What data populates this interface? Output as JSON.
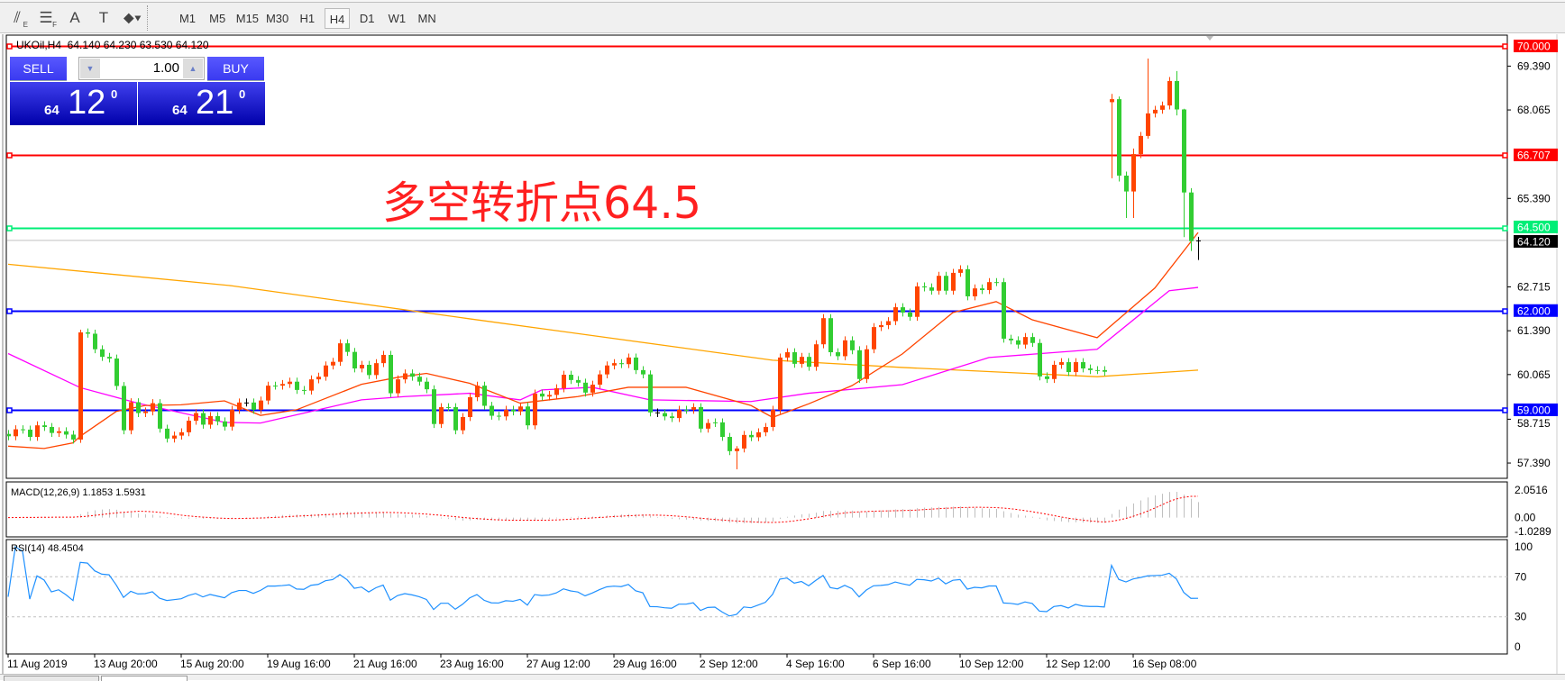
{
  "toolbar": {
    "tools": [
      {
        "icon": "fibonacci-fan-icon",
        "glyph": "⫽",
        "sub": "E"
      },
      {
        "icon": "fibonacci-grid-icon",
        "glyph": "☰",
        "sub": "F"
      },
      {
        "icon": "text-icon",
        "glyph": "A",
        "sub": ""
      },
      {
        "icon": "text-label-icon",
        "glyph": "T",
        "sub": ""
      },
      {
        "icon": "arrows-dropdown-icon",
        "glyph": "⬥▾",
        "sub": ""
      }
    ],
    "timeframes": [
      "M1",
      "M5",
      "M15",
      "M30",
      "H1",
      "H4",
      "D1",
      "W1",
      "MN"
    ],
    "active_timeframe": "H4"
  },
  "chart": {
    "title": "UKOil,H4  64.140 64.230 63.530 64.120",
    "annotation": "多空转折点64.5",
    "annotation_color": "#ff2020"
  },
  "trade_panel": {
    "sell_label": "SELL",
    "buy_label": "BUY",
    "volume": "1.00",
    "sell_price": {
      "small": "64",
      "big": "12",
      "sup": "0"
    },
    "buy_price": {
      "small": "64",
      "big": "21",
      "sup": "0"
    }
  },
  "chart_data": {
    "type": "candlestick",
    "symbol": "UKOil",
    "timeframe": "H4",
    "colors": {
      "up": "#ff4500",
      "down": "#32cd32",
      "ma_long": "#ffa500",
      "ma_mid": "#ff00ff",
      "ma_short": "#ff4500"
    },
    "ylim": [
      56.75,
      70.3
    ],
    "price_ticks": [
      "69.390",
      "68.065",
      "65.390",
      "62.715",
      "61.390",
      "60.065",
      "58.715",
      "57.390"
    ],
    "levels": [
      {
        "value": "70.000",
        "color": "#ff0000"
      },
      {
        "value": "66.707",
        "color": "#ff0000"
      },
      {
        "value": "64.500",
        "color": "#00ee77"
      },
      {
        "value": "62.000",
        "color": "#0000ff"
      },
      {
        "value": "59.000",
        "color": "#0000ff"
      }
    ],
    "current_price": "64.120",
    "first_open": 58.27,
    "open_overrides": {
      "153": 68.3
    },
    "closes": [
      58.2,
      58.41,
      58.4,
      58.18,
      58.53,
      58.48,
      58.3,
      58.35,
      58.25,
      58.1,
      61.34,
      61.3,
      60.83,
      60.6,
      60.55,
      59.72,
      58.38,
      59.23,
      58.9,
      58.95,
      59.2,
      58.43,
      58.13,
      58.22,
      58.32,
      58.67,
      58.9,
      58.55,
      58.81,
      58.65,
      58.49,
      59.0,
      59.22,
      59.22,
      59.0,
      59.28,
      59.73,
      59.73,
      59.78,
      59.85,
      59.6,
      59.58,
      59.92,
      60.0,
      60.34,
      60.45,
      61.01,
      60.75,
      60.25,
      60.36,
      60.05,
      60.41,
      60.66,
      59.5,
      59.92,
      60.1,
      60.0,
      59.85,
      59.62,
      58.57,
      59.08,
      59.08,
      58.38,
      58.78,
      59.38,
      59.73,
      59.12,
      58.82,
      58.8,
      59.0,
      58.95,
      59.1,
      58.53,
      59.49,
      59.4,
      59.45,
      59.65,
      60.06,
      59.9,
      59.82,
      59.52,
      59.76,
      60.07,
      60.34,
      60.41,
      60.38,
      60.58,
      60.2,
      60.07,
      58.92,
      58.9,
      58.8,
      58.75,
      59.0,
      59.0,
      59.08,
      58.43,
      58.6,
      58.62,
      58.18,
      57.75,
      57.83,
      58.24,
      58.17,
      58.32,
      58.48,
      59.0,
      60.58,
      60.74,
      60.39,
      60.6,
      60.3,
      60.98,
      61.77,
      60.74,
      60.62,
      61.1,
      60.8,
      59.93,
      60.83,
      61.5,
      61.56,
      61.68,
      62.1,
      61.94,
      61.81,
      62.73,
      62.7,
      62.6,
      63.05,
      62.6,
      63.14,
      63.25,
      62.43,
      62.67,
      62.62,
      62.86,
      62.86,
      61.15,
      61.1,
      60.97,
      61.2,
      61.02,
      60.01,
      59.93,
      60.36,
      60.44,
      60.14,
      60.44,
      60.25,
      60.2,
      60.2,
      60.15,
      68.39,
      66.08,
      65.6,
      66.73,
      67.28,
      67.96,
      68.07,
      68.2,
      68.94,
      68.08,
      65.57,
      64.1,
      64.12
    ],
    "wicks": {
      "10": [
        61.42,
        58.0
      ],
      "101": [
        57.9,
        57.2
      ],
      "153": [
        68.55,
        66.0
      ],
      "154": [
        68.47,
        65.9
      ],
      "155": [
        66.2,
        64.8
      ],
      "156": [
        66.9,
        64.8
      ],
      "158": [
        69.62,
        67.2
      ],
      "162": [
        69.24,
        67.9
      ],
      "163": [
        68.1,
        64.22
      ],
      "164": [
        65.7,
        63.8
      ],
      "165": [
        64.23,
        63.53
      ]
    },
    "ma_long": [
      [
        0,
        63.4
      ],
      [
        31,
        62.75
      ],
      [
        64,
        61.75
      ],
      [
        106,
        60.5
      ],
      [
        124,
        60.28
      ],
      [
        151,
        60.0
      ],
      [
        165,
        60.2
      ]
    ],
    "ma_mid": [
      [
        0,
        60.7
      ],
      [
        10,
        59.67
      ],
      [
        18,
        59.2
      ],
      [
        30,
        58.62
      ],
      [
        35,
        58.6
      ],
      [
        41,
        58.9
      ],
      [
        49,
        59.3
      ],
      [
        55,
        59.4
      ],
      [
        64,
        59.5
      ],
      [
        71,
        59.3
      ],
      [
        74,
        59.6
      ],
      [
        81,
        59.68
      ],
      [
        89,
        59.3
      ],
      [
        103,
        59.25
      ],
      [
        111,
        59.5
      ],
      [
        124,
        59.76
      ],
      [
        136,
        60.58
      ],
      [
        151,
        60.83
      ],
      [
        161,
        62.6
      ],
      [
        165,
        62.7
      ]
    ],
    "ma_short": [
      [
        0,
        57.9
      ],
      [
        5,
        57.83
      ],
      [
        9,
        58.0
      ],
      [
        10,
        58.2
      ],
      [
        15,
        58.95
      ],
      [
        19,
        59.13
      ],
      [
        24,
        59.15
      ],
      [
        30,
        59.27
      ],
      [
        35,
        58.83
      ],
      [
        40,
        59.0
      ],
      [
        49,
        59.77
      ],
      [
        54,
        59.98
      ],
      [
        58,
        60.1
      ],
      [
        64,
        59.8
      ],
      [
        71,
        59.2
      ],
      [
        79,
        59.4
      ],
      [
        86,
        59.68
      ],
      [
        94,
        59.68
      ],
      [
        103,
        59.13
      ],
      [
        106,
        58.77
      ],
      [
        111,
        59.18
      ],
      [
        117,
        59.73
      ],
      [
        124,
        60.69
      ],
      [
        131,
        61.94
      ],
      [
        137,
        62.27
      ],
      [
        142,
        61.72
      ],
      [
        151,
        61.18
      ],
      [
        159,
        62.68
      ],
      [
        165,
        64.36
      ]
    ],
    "date_labels": [
      "11 Aug 2019",
      "13 Aug 20:00",
      "15 Aug 20:00",
      "19 Aug 16:00",
      "21 Aug 16:00",
      "23 Aug 16:00",
      "27 Aug 12:00",
      "29 Aug 16:00",
      "2 Sep 12:00",
      "4 Sep 16:00",
      "6 Sep 16:00",
      "10 Sep 12:00",
      "12 Sep 12:00",
      "16 Sep 08:00"
    ],
    "macd": {
      "label": "MACD(12,26,9) 1.1853 1.5931",
      "ticks": [
        "2.0516",
        "0.00",
        "-1.0289"
      ],
      "range": [
        -1.0289,
        2.0516
      ]
    },
    "rsi": {
      "label": "RSI(14) 48.4504",
      "ticks": [
        "100",
        "70",
        "30",
        "0"
      ],
      "levels": [
        70,
        30
      ],
      "color": "#1e90ff"
    }
  }
}
